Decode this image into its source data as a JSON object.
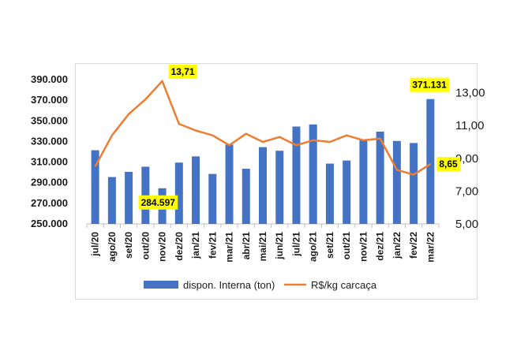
{
  "chart_data": {
    "type": "bar+line",
    "categories": [
      "jul/20",
      "ago/20",
      "set/20",
      "out/20",
      "nov/20",
      "dez/20",
      "jan/21",
      "fev/21",
      "mar/21",
      "abr/21",
      "mai/21",
      "jun/21",
      "jul/21",
      "ago/21",
      "set/21",
      "out/21",
      "nov/21",
      "dez/21",
      "jan/22",
      "fev/22",
      "mar/22"
    ],
    "series": [
      {
        "name": "dispon. Interna (ton)",
        "type": "bar",
        "axis": "left",
        "color": "#4472c4",
        "values": [
          321500,
          295500,
          300500,
          305500,
          284597,
          309500,
          315500,
          298500,
          327000,
          303500,
          324500,
          321000,
          344500,
          346500,
          308500,
          311500,
          331500,
          339500,
          330500,
          328500,
          371131
        ]
      },
      {
        "name": "R$/kg carcaça",
        "type": "line",
        "axis": "right",
        "color": "#ed7d31",
        "values": [
          8.5,
          10.4,
          11.7,
          12.6,
          13.71,
          11.1,
          10.7,
          10.4,
          9.8,
          10.5,
          10.0,
          10.3,
          9.8,
          10.1,
          10.0,
          10.4,
          10.1,
          10.2,
          8.3,
          8.0,
          8.65
        ]
      }
    ],
    "y_left": {
      "ticks": [
        "390.000",
        "370.000",
        "350.000",
        "330.000",
        "310.000",
        "290.000",
        "270.000",
        "250.000"
      ],
      "ylim": [
        250000,
        390000
      ]
    },
    "y_right": {
      "ticks": [
        "13,00",
        "11,00",
        "9,00",
        "7,00",
        "5,00"
      ],
      "ylim": [
        5,
        13.8
      ]
    },
    "annotations": [
      {
        "label": "13,71",
        "series": 1,
        "index": 4
      },
      {
        "label": "284.597",
        "series": 0,
        "index": 4
      },
      {
        "label": "371.131",
        "series": 0,
        "index": 20
      },
      {
        "label": "8,65",
        "series": 1,
        "index": 20
      }
    ],
    "legend_position": "bottom",
    "grid": false
  }
}
